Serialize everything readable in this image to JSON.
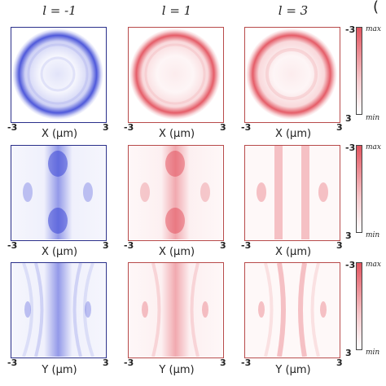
{
  "columns": [
    {
      "title": "l = -1"
    },
    {
      "title": "l = 1"
    },
    {
      "title": "l = 3"
    }
  ],
  "rows": [
    {
      "xlabel": "X (μm)",
      "tick_left": "-3",
      "tick_right": "3"
    },
    {
      "xlabel": "X (μm)",
      "tick_left": "-3",
      "tick_right": "3"
    },
    {
      "xlabel": "Y (μm)",
      "tick_left": "-3",
      "tick_right": "3"
    }
  ],
  "colorbar": {
    "max_label": "max",
    "min_label": "min",
    "top_tick": "-3",
    "bottom_tick": "3"
  },
  "corner_mark": "(",
  "colors": {
    "blue": "#3b46d6",
    "red": "#e0404d",
    "blue_frame": "#2a2f8a",
    "red_frame": "#b84a4a"
  }
}
